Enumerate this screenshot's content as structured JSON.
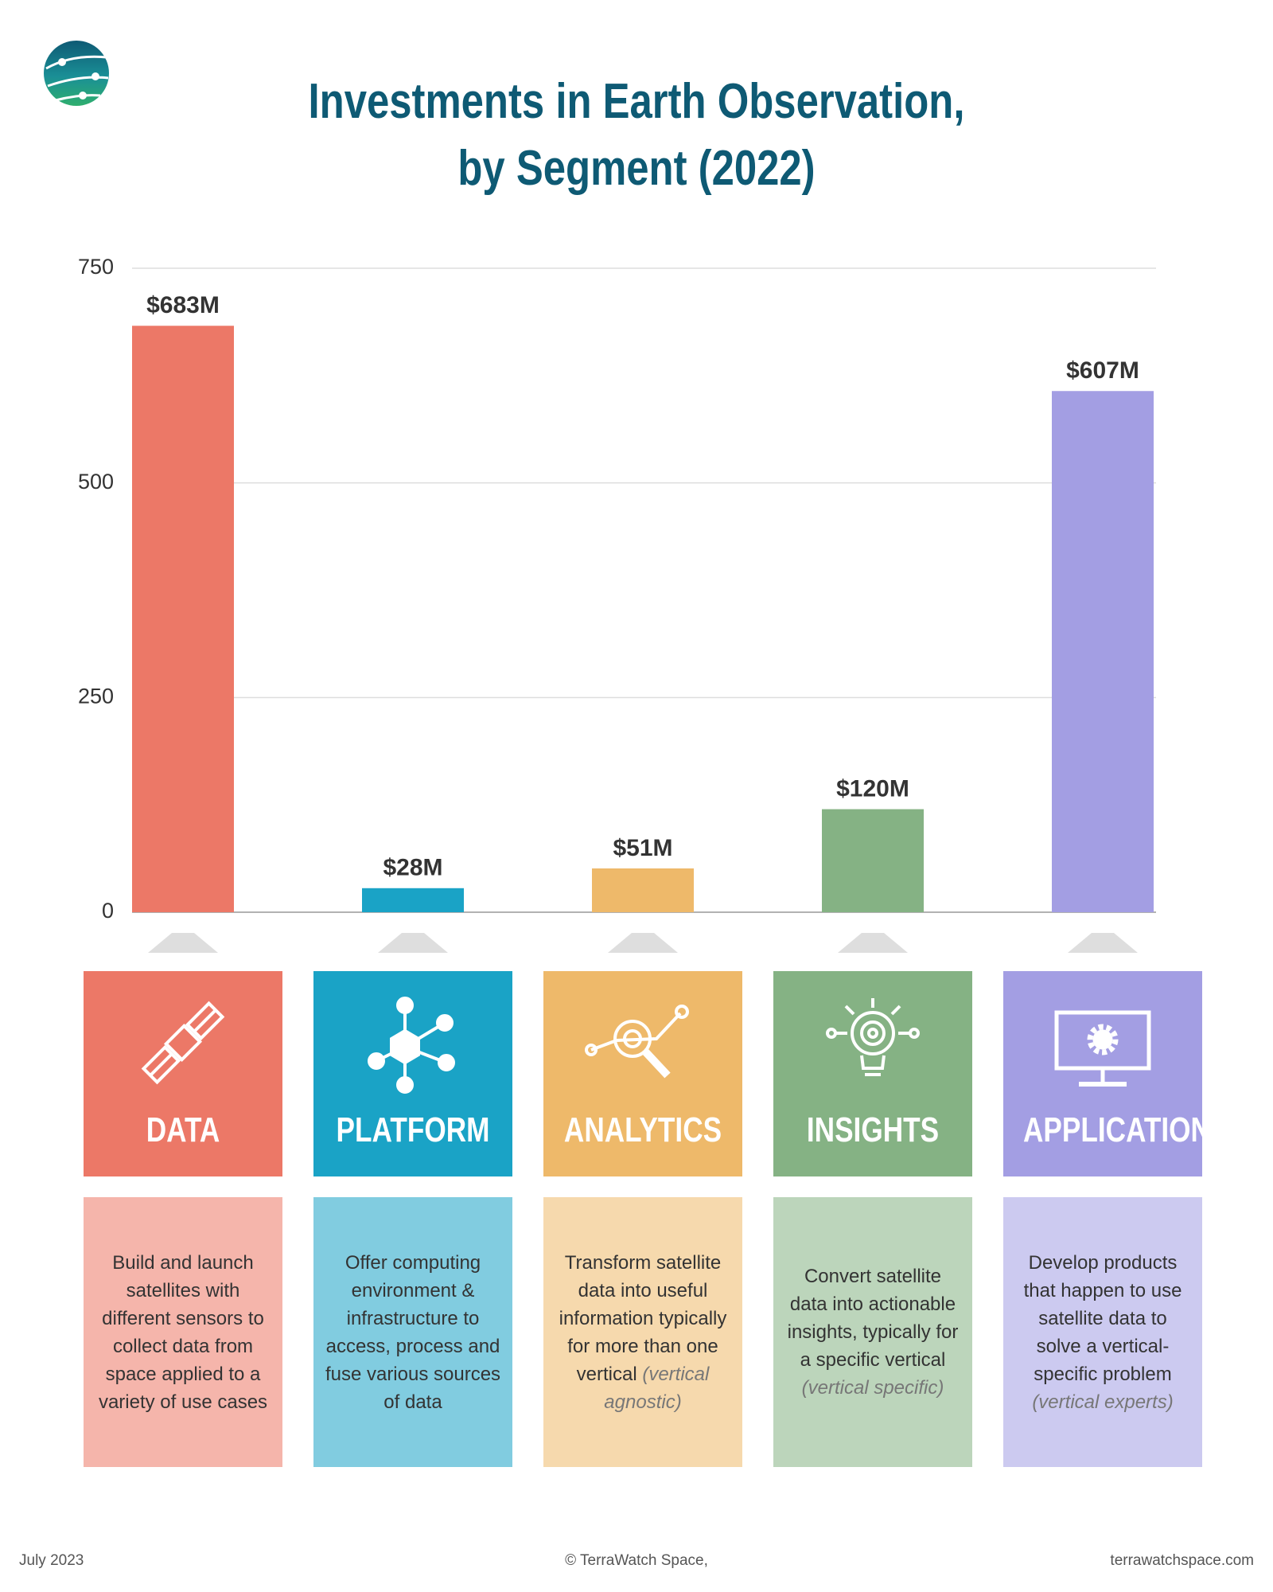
{
  "chart_data": {
    "type": "bar",
    "title": "Investments in Earth Observation,\nby Segment (2022)",
    "categories": [
      "DATA",
      "PLATFORM",
      "ANALYTICS",
      "INSIGHTS",
      "APPLICATION"
    ],
    "values": [
      683,
      28,
      51,
      120,
      607
    ],
    "value_labels": [
      "$683M",
      "$28M",
      "$51M",
      "$120M",
      "$607M"
    ],
    "colors": [
      "#ec7867",
      "#1aa3c6",
      "#eeb96a",
      "#85b284",
      "#a39ee3"
    ],
    "ylim": [
      0,
      750
    ],
    "yticks": [
      0,
      250,
      500,
      750
    ],
    "grid": true
  },
  "segments": [
    {
      "description": "Build and launch satellites with different sensors to collect data from space applied to a variety of use cases"
    },
    {
      "description": "Offer computing environment & infrastructure to access, process and fuse various sources of data"
    },
    {
      "description": "Transform satellite data into useful information typically for more than one vertical",
      "note": "(vertical agnostic)"
    },
    {
      "description": "Convert satellite data into actionable insights, typically for a specific vertical",
      "note": "(vertical specific)"
    },
    {
      "description": "Develop products that happen to use satellite data to solve a vertical-specific problem",
      "note": "(vertical experts)"
    }
  ],
  "footer": {
    "date": "July 2023",
    "copyright": "© TerraWatch Space,",
    "website": "terrawatchspace.com"
  }
}
